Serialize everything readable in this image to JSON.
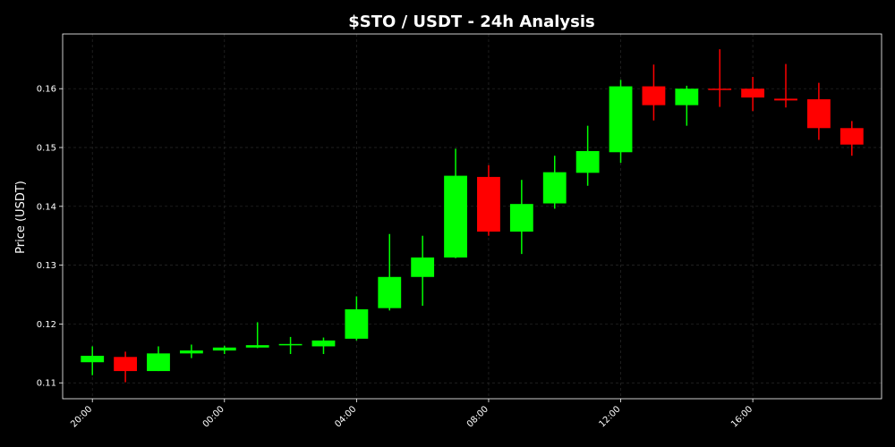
{
  "chart_data": {
    "type": "candlestick",
    "title": "$STO / USDT - 24h Analysis",
    "xlabel": "",
    "ylabel": "Price (USDT)",
    "xlim": [
      -0.9,
      23.9
    ],
    "ylim": [
      0.1073,
      0.1693
    ],
    "grid": true,
    "colors": {
      "background": "#000000",
      "up": "#00ff00",
      "down": "#ff0000",
      "grid": "#2a2a2a",
      "axis": "#ffffff",
      "text": "#ffffff"
    },
    "x_ticks": [
      {
        "x": 0,
        "label": "20:00"
      },
      {
        "x": 4,
        "label": "00:00"
      },
      {
        "x": 8,
        "label": "04:00"
      },
      {
        "x": 12,
        "label": "08:00"
      },
      {
        "x": 16,
        "label": "12:00"
      },
      {
        "x": 20,
        "label": "16:00"
      }
    ],
    "y_ticks": [
      0.11,
      0.12,
      0.13,
      0.14,
      0.15,
      0.16
    ],
    "y_tick_labels": [
      "0.11",
      "0.12",
      "0.13",
      "0.14",
      "0.15",
      "0.16"
    ],
    "candles": [
      {
        "time": "20:00",
        "open": 0.1135,
        "high": 0.1162,
        "low": 0.1113,
        "close": 0.1146
      },
      {
        "time": "21:00",
        "open": 0.1144,
        "high": 0.1153,
        "low": 0.1101,
        "close": 0.112
      },
      {
        "time": "22:00",
        "open": 0.112,
        "high": 0.1162,
        "low": 0.112,
        "close": 0.115
      },
      {
        "time": "23:00",
        "open": 0.115,
        "high": 0.1165,
        "low": 0.1142,
        "close": 0.1155
      },
      {
        "time": "00:00",
        "open": 0.1155,
        "high": 0.1163,
        "low": 0.1149,
        "close": 0.116
      },
      {
        "time": "01:00",
        "open": 0.116,
        "high": 0.1203,
        "low": 0.1159,
        "close": 0.1164
      },
      {
        "time": "02:00",
        "open": 0.1164,
        "high": 0.1178,
        "low": 0.1149,
        "close": 0.1166
      },
      {
        "time": "03:00",
        "open": 0.1162,
        "high": 0.1177,
        "low": 0.1149,
        "close": 0.1172
      },
      {
        "time": "04:00",
        "open": 0.1175,
        "high": 0.1247,
        "low": 0.1172,
        "close": 0.1225
      },
      {
        "time": "05:00",
        "open": 0.1227,
        "high": 0.1353,
        "low": 0.1223,
        "close": 0.128
      },
      {
        "time": "06:00",
        "open": 0.128,
        "high": 0.135,
        "low": 0.1231,
        "close": 0.1313
      },
      {
        "time": "07:00",
        "open": 0.1313,
        "high": 0.1498,
        "low": 0.1312,
        "close": 0.1452
      },
      {
        "time": "08:00",
        "open": 0.145,
        "high": 0.147,
        "low": 0.135,
        "close": 0.1357
      },
      {
        "time": "09:00",
        "open": 0.1357,
        "high": 0.1445,
        "low": 0.1319,
        "close": 0.1404
      },
      {
        "time": "10:00",
        "open": 0.1405,
        "high": 0.1486,
        "low": 0.1396,
        "close": 0.1458
      },
      {
        "time": "11:00",
        "open": 0.1457,
        "high": 0.1537,
        "low": 0.1435,
        "close": 0.1494
      },
      {
        "time": "12:00",
        "open": 0.1492,
        "high": 0.1615,
        "low": 0.1474,
        "close": 0.1604
      },
      {
        "time": "13:00",
        "open": 0.1604,
        "high": 0.1641,
        "low": 0.1546,
        "close": 0.1572
      },
      {
        "time": "14:00",
        "open": 0.1572,
        "high": 0.1605,
        "low": 0.1537,
        "close": 0.16
      },
      {
        "time": "15:00",
        "open": 0.16,
        "high": 0.1667,
        "low": 0.1569,
        "close": 0.1599
      },
      {
        "time": "16:00",
        "open": 0.16,
        "high": 0.162,
        "low": 0.1562,
        "close": 0.1585
      },
      {
        "time": "17:00",
        "open": 0.1583,
        "high": 0.1642,
        "low": 0.1568,
        "close": 0.158
      },
      {
        "time": "18:00",
        "open": 0.1582,
        "high": 0.161,
        "low": 0.1513,
        "close": 0.1533
      },
      {
        "time": "19:00",
        "open": 0.1533,
        "high": 0.1545,
        "low": 0.1486,
        "close": 0.1505
      }
    ]
  }
}
